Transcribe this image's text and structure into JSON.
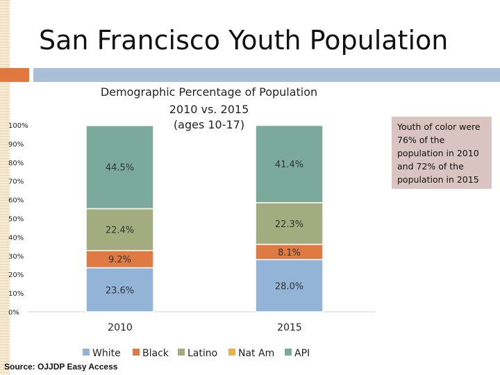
{
  "slide": {
    "title": "San Francisco Youth Population",
    "source": "Source: OJJDP Easy Access",
    "note": "Youth of color were 76% of the population in 2010 and 72% of the population in 2015"
  },
  "colors": {
    "white": "#93b4d6",
    "black": "#df7a43",
    "latino": "#a3ac7f",
    "natam": "#e8b04a",
    "api": "#7ba99c"
  },
  "chart_data": {
    "type": "bar",
    "stacked": true,
    "title_lines": [
      "Demographic Percentage of Population",
      "2010 vs. 2015",
      "(ages 10-17)"
    ],
    "categories": [
      "2010",
      "2015"
    ],
    "ylim": [
      0,
      100
    ],
    "y_ticks": [
      "0%",
      "10%",
      "20%",
      "30%",
      "40%",
      "50%",
      "60%",
      "70%",
      "80%",
      "90%",
      "100%"
    ],
    "legend_position": "bottom",
    "series": [
      {
        "name": "White",
        "key": "white",
        "values": [
          23.6,
          28.0
        ],
        "labels": [
          "23.6%",
          "28.0%"
        ]
      },
      {
        "name": "Black",
        "key": "black",
        "values": [
          9.2,
          8.1
        ],
        "labels": [
          "9.2%",
          "8.1%"
        ]
      },
      {
        "name": "Latino",
        "key": "latino",
        "values": [
          22.4,
          22.3
        ],
        "labels": [
          "22.4%",
          "22.3%"
        ]
      },
      {
        "name": "Nat Am",
        "key": "natam",
        "values": [
          0,
          0
        ],
        "labels": [
          "",
          ""
        ]
      },
      {
        "name": "API",
        "key": "api",
        "values": [
          44.5,
          41.4
        ],
        "labels": [
          "44.5%",
          "41.4%"
        ]
      }
    ]
  }
}
